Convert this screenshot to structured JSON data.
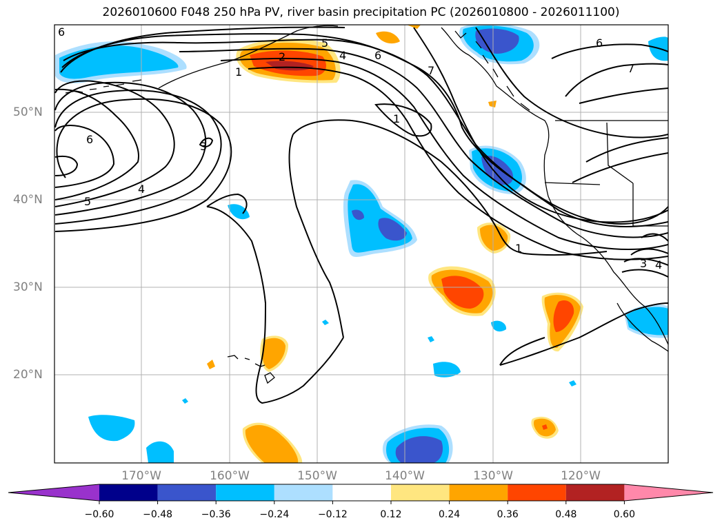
{
  "title": "2026010600 F048 250 hPa PV, river basin precipitation PC (2026010800 - 2026011100)",
  "latitude_labels": [
    "50°N",
    "40°N",
    "30°N",
    "20°N"
  ],
  "longitude_labels": [
    "170°W",
    "160°W",
    "150°W",
    "140°W",
    "130°W",
    "120°W"
  ],
  "colorbar": {
    "tick_labels": [
      "−0.60",
      "−0.48",
      "−0.36",
      "−0.24",
      "−0.12",
      "0.12",
      "0.24",
      "0.36",
      "0.48",
      "0.60"
    ],
    "levels": [
      -0.6,
      -0.48,
      -0.36,
      -0.24,
      -0.12,
      0.12,
      0.24,
      0.36,
      0.48,
      0.6
    ],
    "colors": [
      "#9932CC",
      "#00008B",
      "#3A55CC",
      "#00BFFF",
      "#ADDFFF",
      "#FFFFFF",
      "#FFE680",
      "#FFA500",
      "#FF4500",
      "#B22222",
      "#FF88AA"
    ]
  },
  "pv_contour_labels": [
    "6",
    "5",
    "4",
    "6",
    "7",
    "6",
    "7",
    "1",
    "2",
    "6",
    "3",
    "5",
    "4",
    "1",
    "1",
    "3",
    "4"
  ],
  "colors": {
    "land_outline": "#000000",
    "grid": "#b0b0b0",
    "contour": "#000000"
  }
}
